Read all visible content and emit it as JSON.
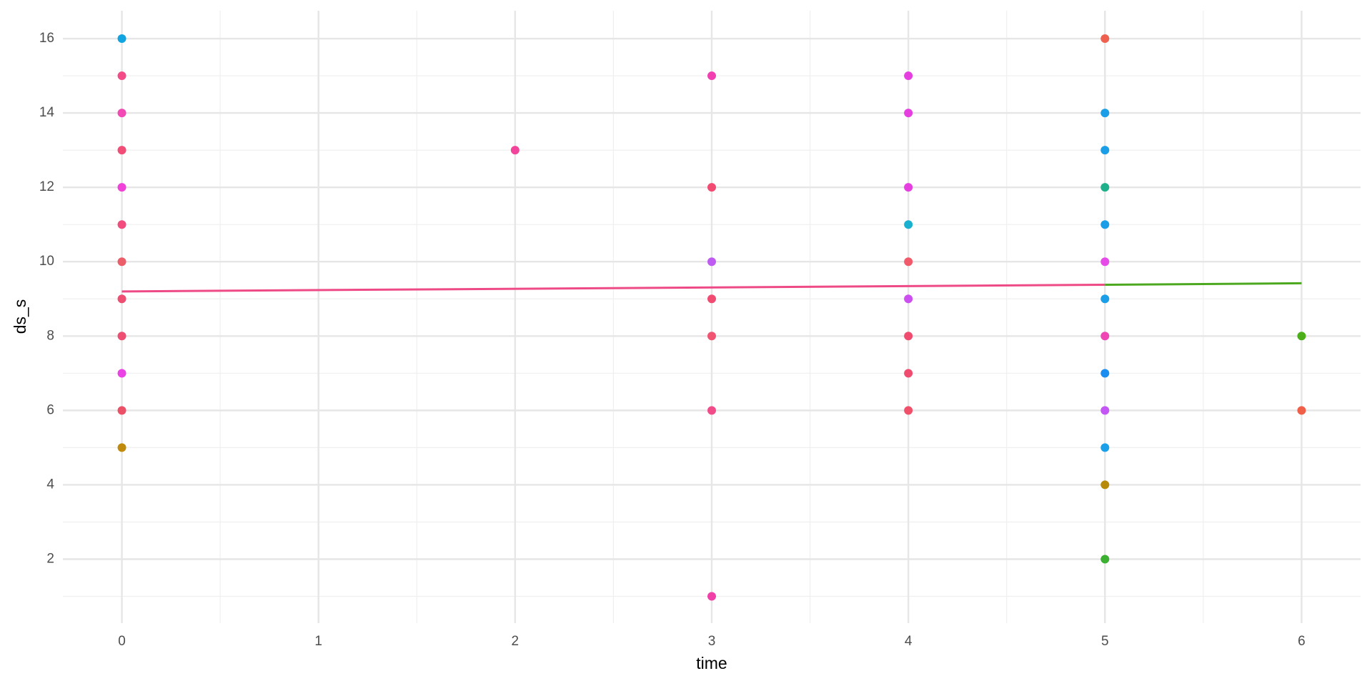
{
  "chart_data": {
    "type": "scatter",
    "x_label": "time",
    "y_label": "ds_s",
    "xlim": [
      -0.3,
      6.3
    ],
    "ylim": [
      0.28,
      16.75
    ],
    "xticks": [
      0,
      1,
      2,
      3,
      4,
      5,
      6
    ],
    "yticks": [
      2,
      4,
      6,
      8,
      10,
      12,
      14,
      16
    ],
    "xminor": [
      0.5,
      1.5,
      2.5,
      3.5,
      4.5,
      5.5
    ],
    "yminor": [
      1,
      3,
      5,
      7,
      9,
      11,
      13,
      15
    ],
    "grid": true,
    "series": [
      {
        "x": [
          0,
          0,
          0,
          0,
          0,
          0,
          0,
          0,
          0,
          0,
          0,
          0,
          2,
          3,
          3,
          3,
          3,
          3,
          3,
          3,
          4,
          4,
          4,
          4,
          4,
          4,
          4,
          4,
          4,
          5,
          5,
          5,
          5,
          5,
          5,
          5,
          5,
          5,
          5,
          5,
          5,
          5,
          6,
          6
        ],
        "values": [
          16,
          15,
          14,
          13,
          12,
          11,
          10,
          9,
          8,
          7,
          6,
          5,
          13,
          15,
          12,
          10,
          9,
          8,
          6,
          1,
          15,
          14,
          12,
          11,
          10,
          9,
          8,
          7,
          6,
          16,
          14,
          13,
          12,
          11,
          10,
          9,
          8,
          7,
          6,
          5,
          4,
          2,
          8,
          6
        ],
        "colors": [
          "#12a4e0",
          "#f24b87",
          "#f249b4",
          "#f24d77",
          "#f041d8",
          "#f24b7e",
          "#ec5d6a",
          "#ee4e72",
          "#ee4e72",
          "#ea42e4",
          "#ec5066",
          "#c08b0c",
          "#f2449a",
          "#f13fb0",
          "#f24b72",
          "#be5cf2",
          "#f24b72",
          "#f05470",
          "#f24b8a",
          "#f13fa8",
          "#e63fe0",
          "#e63fe0",
          "#e63fe0",
          "#1ab0d0",
          "#f05a6a",
          "#cc4ff0",
          "#f04c70",
          "#f04c70",
          "#f0506a",
          "#f0604e",
          "#1a9ee8",
          "#1a9ee8",
          "#1eb08a",
          "#1a9ee8",
          "#e64ae8",
          "#1a9ee8",
          "#f045b4",
          "#1a8ef0",
          "#c356f5",
          "#1aa0e8",
          "#b88a0a",
          "#3cb030",
          "#4caf1a",
          "#f06048"
        ]
      }
    ],
    "lines": [
      {
        "color": "#ee4a86",
        "x": [
          0,
          5
        ],
        "values": [
          9.2,
          9.38
        ]
      },
      {
        "color": "#4ca81e",
        "x": [
          5,
          6
        ],
        "values": [
          9.38,
          9.42
        ]
      }
    ]
  }
}
